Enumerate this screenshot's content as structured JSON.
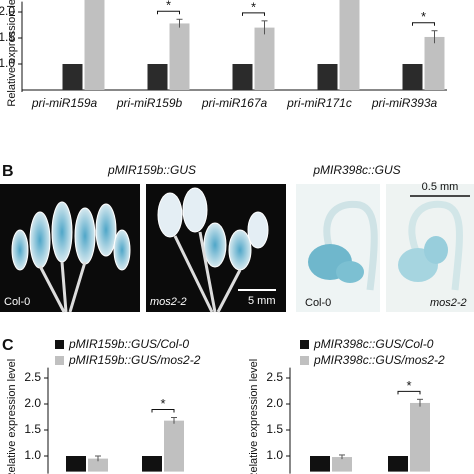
{
  "panels": {
    "a": {},
    "b": {
      "label": "B",
      "titles": [
        "pMIR159b::GUS",
        "pMIR398c::GUS"
      ],
      "image_labels": [
        "Col-0",
        "mos2-2",
        "5 mm",
        "0.5 mm",
        "Col-0",
        "mos2-2"
      ]
    },
    "c": {
      "label": "C"
    }
  },
  "chart_data": [
    {
      "type": "bar",
      "y_label": "Relative expression level",
      "categories": [
        "pri-miR159a",
        "pri-miR159b",
        "pri-miR167a",
        "pri-miR171c",
        "pri-miR393a"
      ],
      "series": [
        {
          "color": "#2b2b2b",
          "values": [
            1.0,
            1.0,
            1.0,
            1.0,
            1.0
          ]
        },
        {
          "color": "#c0c0c0",
          "values": [
            2.3,
            1.78,
            1.7,
            2.3,
            1.52
          ],
          "errors": [
            null,
            0.08,
            0.13,
            null,
            0.12
          ]
        }
      ],
      "annotations": [
        {
          "text": "*",
          "index": 1
        },
        {
          "text": "*",
          "index": 2
        },
        {
          "text": "*",
          "index": 4
        }
      ],
      "ylim": [
        0.5,
        2.2
      ],
      "yticks": [
        {
          "value": 1,
          "label": "1.0"
        },
        {
          "value": 1.5,
          "label": "1.5"
        },
        {
          "value": 2,
          "label": "2.0"
        }
      ]
    },
    {
      "type": "bar",
      "y_label": "Relative expression level",
      "series": [
        {
          "name": "pMIR159b::GUS/Col-0",
          "color": "#111111",
          "values": [
            1.0,
            1.0
          ]
        },
        {
          "name": "pMIR159b::GUS/mos2-2",
          "color": "#c0c0c0",
          "values": [
            0.95,
            1.68
          ],
          "errors": [
            0.05,
            0.06
          ]
        }
      ],
      "annotations": [
        {
          "text": "*",
          "index": 1
        }
      ],
      "ylim": [
        0.7,
        2.7
      ],
      "yticks": [
        {
          "value": 1,
          "label": "1.0"
        },
        {
          "value": 1.5,
          "label": "1.5"
        },
        {
          "value": 2,
          "label": "2.0"
        },
        {
          "value": 2.5,
          "label": "2.5"
        }
      ]
    },
    {
      "type": "bar",
      "y_label": "Relative expression level",
      "series": [
        {
          "name": "pMIR398c::GUS/Col-0",
          "color": "#111111",
          "values": [
            1.0,
            1.0
          ]
        },
        {
          "name": "pMIR398c::GUS/mos2-2",
          "color": "#c0c0c0",
          "values": [
            0.98,
            2.02
          ],
          "errors": [
            0.04,
            0.07
          ]
        }
      ],
      "annotations": [
        {
          "text": "*",
          "index": 1
        }
      ],
      "ylim": [
        0.7,
        2.7
      ],
      "yticks": [
        {
          "value": 1,
          "label": "1.0"
        },
        {
          "value": 1.5,
          "label": "1.5"
        },
        {
          "value": 2,
          "label": "2.0"
        },
        {
          "value": 2.5,
          "label": "2.5"
        }
      ]
    }
  ]
}
